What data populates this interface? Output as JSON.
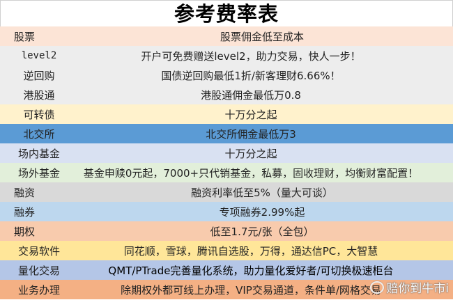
{
  "title": "参考费率表",
  "rows": [
    {
      "label": "股票",
      "value": "股票佣金低至成本",
      "color": "#fce4d6"
    },
    {
      "label": "level2",
      "value": "开户可免费赠送level2，助力交易，快人一步！",
      "color": "#ededed"
    },
    {
      "label": "逆回购",
      "value": "国债逆回购最低1折/新客理财6.66%！",
      "color": "#ededed"
    },
    {
      "label": "港股通",
      "value": "港股通佣金最低万0.8",
      "color": "#ededed"
    },
    {
      "label": "可转债",
      "value": "十万分之起",
      "color": "#fff2cc"
    },
    {
      "label": "北交所",
      "value": "北交所佣金最低万3",
      "color": "#5b9bd5"
    },
    {
      "label": "场内基金",
      "value": "十万分之起",
      "color": "#d9e1f2"
    },
    {
      "label": "场外基金",
      "value": "基金申赎0元起，7000+只代销基金，私募，固收理财，均衡财富配置！",
      "color": "#e2efda"
    },
    {
      "label": "融资",
      "value": "融资利率低至5%（量大可谈）",
      "color": "#d9d9d9"
    },
    {
      "label": "融券",
      "value": "专项融券2.99%起",
      "color": "#bdd7ee"
    },
    {
      "label": "期权",
      "value": "低至1.7元/张（全包）",
      "color": "#f8cbad"
    },
    {
      "label": "交易软件",
      "value": "同花顺，雪球，腾讯自选股，万得，通达信PC，大智慧",
      "color": "#ffe699"
    },
    {
      "label": "量化交易",
      "value": "QMT/PTrade完善量化系统，助力量化爱好者/可切换极速柜台",
      "color": "#b4c6e7"
    },
    {
      "label": "业务办理",
      "value": "除期权外都可线上办理，VIP交易通道，条件单/网格交易",
      "color": "#f4b084"
    }
  ],
  "watermark": "赔你到牛市i"
}
